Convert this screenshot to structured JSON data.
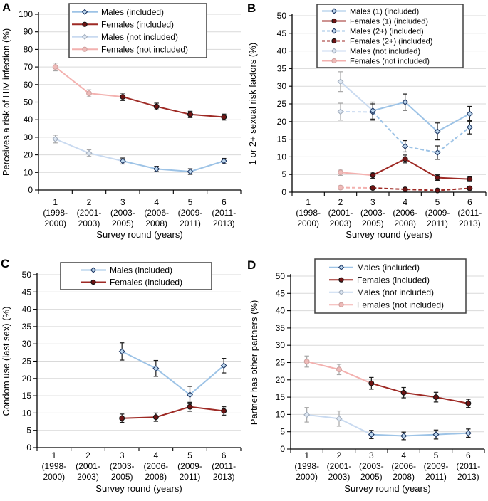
{
  "figure": {
    "background": "#FFFFFF",
    "xlabel": "Survey round (years)",
    "categories": [
      [
        "1",
        "(1998-",
        "2000)"
      ],
      [
        "2",
        "(2001-",
        "2003)"
      ],
      [
        "3",
        "(2003-",
        "2005)"
      ],
      [
        "4",
        "(2006-",
        "2008)"
      ],
      [
        "5",
        "(2009-",
        "2011)"
      ],
      [
        "6",
        "(2011-",
        "2013)"
      ]
    ],
    "colors": {
      "grid": "#D9D9D9",
      "axis": "#000000",
      "legend_border": "#404040",
      "text": "#000000"
    }
  },
  "styles": {
    "male_inc": {
      "line": "#9DC3E6",
      "marker": "diamond",
      "fill": "#BDD7EE",
      "stroke": "#1F3864",
      "err": "#1A1A1A"
    },
    "female_inc": {
      "line": "#9E2A25",
      "marker": "circle",
      "fill": "#6E1414",
      "stroke": "#141414",
      "err": "#1A1A1A"
    },
    "male_not": {
      "line": "#C9DAF0",
      "marker": "diamond",
      "fill": "#DDE7F3",
      "stroke": "#A3AEBD",
      "err": "#A6A6A6"
    },
    "female_not": {
      "line": "#F3B1AF",
      "marker": "circle",
      "fill": "#EFBAB8",
      "stroke": "#CFA2A0",
      "err": "#A6A6A6"
    }
  },
  "chart_data": [
    {
      "type": "line",
      "panel": "A",
      "ylabel": "Perceives a risk of HIV infection (%)",
      "xlabel": "Survey round (years)",
      "ylim": [
        0,
        100
      ],
      "ystep": 10,
      "yticks": [
        "0",
        "10",
        "20",
        "30",
        "40",
        "50",
        "60",
        "70",
        "80",
        "90",
        "100"
      ],
      "grid": true,
      "legend_position": "top",
      "legend": [
        {
          "label": "Males (included)",
          "style": "male_inc",
          "dash": false
        },
        {
          "label": "Females (included)",
          "style": "female_inc",
          "dash": false
        },
        {
          "label": "Males (not included)",
          "style": "male_not",
          "dash": false
        },
        {
          "label": "Females (not included)",
          "style": "female_not",
          "dash": false
        }
      ],
      "series": [
        {
          "name": "females-not-included",
          "style": "female_not",
          "dash": false,
          "extend": {
            "x": 3,
            "y": 53
          },
          "points": [
            {
              "x": 1,
              "y": 70,
              "e": 2.2
            },
            {
              "x": 2,
              "y": 55,
              "e": 2.0
            }
          ]
        },
        {
          "name": "males-not-included",
          "style": "male_not",
          "dash": false,
          "extend": {
            "x": 3,
            "y": 16.5
          },
          "points": [
            {
              "x": 1,
              "y": 29,
              "e": 2.2
            },
            {
              "x": 2,
              "y": 21,
              "e": 1.9
            }
          ]
        },
        {
          "name": "females-included",
          "style": "female_inc",
          "dash": false,
          "points": [
            {
              "x": 3,
              "y": 53,
              "e": 2.1
            },
            {
              "x": 4,
              "y": 47.5,
              "e": 1.9
            },
            {
              "x": 5,
              "y": 43,
              "e": 1.8
            },
            {
              "x": 6,
              "y": 41.5,
              "e": 1.7
            }
          ]
        },
        {
          "name": "males-included",
          "style": "male_inc",
          "dash": false,
          "points": [
            {
              "x": 3,
              "y": 16.5,
              "e": 1.7
            },
            {
              "x": 4,
              "y": 12,
              "e": 1.5
            },
            {
              "x": 5,
              "y": 10.5,
              "e": 1.6
            },
            {
              "x": 6,
              "y": 16.5,
              "e": 1.5
            }
          ]
        }
      ]
    },
    {
      "type": "line",
      "panel": "B",
      "ylabel": "1 or 2+ sexual risk factors (%)",
      "xlabel": "Survey round (years)",
      "ylim": [
        0,
        50
      ],
      "ystep": 5,
      "yticks": [
        "0",
        "5",
        "10",
        "15",
        "20",
        "25",
        "30",
        "35",
        "40",
        "45",
        "50"
      ],
      "grid": true,
      "legend_position": "top",
      "legend": [
        {
          "label": "Males (1) (included)",
          "style": "male_inc",
          "dash": false
        },
        {
          "label": "Females (1) (included)",
          "style": "female_inc",
          "dash": false
        },
        {
          "label": "Males (2+) (included)",
          "style": "male_inc",
          "dash": true
        },
        {
          "label": "Females (2+) (included)",
          "style": "female_inc",
          "dash": true
        },
        {
          "label": "Males (not included)",
          "style": "male_not",
          "dash": false
        },
        {
          "label": "Females (not included)",
          "style": "female_not",
          "dash": false
        }
      ],
      "series": [
        {
          "name": "males-not-included-1",
          "style": "male_not",
          "dash": false,
          "extend": {
            "x": 3,
            "y": 23.1
          },
          "points": [
            {
              "x": 2,
              "y": 31.3,
              "e": 2.8
            }
          ]
        },
        {
          "name": "males-not-included-2plus",
          "style": "male_not",
          "dash": true,
          "extend": {
            "x": 3,
            "y": 22.7
          },
          "points": [
            {
              "x": 2,
              "y": 22.8,
              "e": 2.4
            }
          ]
        },
        {
          "name": "females-not-included-1",
          "style": "female_not",
          "dash": false,
          "extend": {
            "x": 3,
            "y": 4.8
          },
          "points": [
            {
              "x": 2,
              "y": 5.6,
              "e": 0.9
            }
          ]
        },
        {
          "name": "females-not-included-2plus",
          "style": "female_not",
          "dash": true,
          "extend": {
            "x": 3,
            "y": 1.2
          },
          "points": [
            {
              "x": 2,
              "y": 1.3,
              "e": 0.5
            }
          ]
        },
        {
          "name": "males-2plus-included",
          "style": "male_inc",
          "dash": true,
          "points": [
            {
              "x": 3,
              "y": 22.7,
              "e": 2.3
            },
            {
              "x": 4,
              "y": 13,
              "e": 1.6
            },
            {
              "x": 5,
              "y": 11.2,
              "e": 1.9
            },
            {
              "x": 6,
              "y": 18.4,
              "e": 1.9
            }
          ]
        },
        {
          "name": "males-1-included",
          "style": "male_inc",
          "dash": false,
          "points": [
            {
              "x": 3,
              "y": 23.1,
              "e": 2.4
            },
            {
              "x": 4,
              "y": 25.5,
              "e": 2.3
            },
            {
              "x": 5,
              "y": 17.2,
              "e": 2.4
            },
            {
              "x": 6,
              "y": 22.2,
              "e": 2.1
            }
          ]
        },
        {
          "name": "females-2plus-included",
          "style": "female_inc",
          "dash": true,
          "points": [
            {
              "x": 3,
              "y": 1.2,
              "e": 0.4
            },
            {
              "x": 4,
              "y": 0.8,
              "e": 0.3
            },
            {
              "x": 5,
              "y": 0.5,
              "e": 0.3
            },
            {
              "x": 6,
              "y": 1.1,
              "e": 0.4
            }
          ]
        },
        {
          "name": "females-1-included",
          "style": "female_inc",
          "dash": false,
          "points": [
            {
              "x": 3,
              "y": 4.8,
              "e": 0.9
            },
            {
              "x": 4,
              "y": 9.4,
              "e": 1.1
            },
            {
              "x": 5,
              "y": 4.1,
              "e": 0.8
            },
            {
              "x": 6,
              "y": 3.7,
              "e": 0.7
            }
          ]
        }
      ]
    },
    {
      "type": "line",
      "panel": "C",
      "ylabel": "Condom use (last sex) (%)",
      "xlabel": "Survey round (years)",
      "ylim": [
        0,
        50
      ],
      "ystep": 5,
      "yticks": [
        "0",
        "5",
        "10",
        "15",
        "20",
        "25",
        "30",
        "35",
        "40",
        "45",
        "50"
      ],
      "grid": true,
      "legend_position": "top",
      "legend": [
        {
          "label": "Males (included)",
          "style": "male_inc",
          "dash": false
        },
        {
          "label": "Females (included)",
          "style": "female_inc",
          "dash": false
        }
      ],
      "series": [
        {
          "name": "males-included",
          "style": "male_inc",
          "dash": false,
          "points": [
            {
              "x": 3,
              "y": 27.8,
              "e": 2.5
            },
            {
              "x": 4,
              "y": 22.9,
              "e": 2.3
            },
            {
              "x": 5,
              "y": 15.3,
              "e": 2.4
            },
            {
              "x": 6,
              "y": 23.7,
              "e": 2.1
            }
          ]
        },
        {
          "name": "females-included",
          "style": "female_inc",
          "dash": false,
          "points": [
            {
              "x": 3,
              "y": 8.5,
              "e": 1.2
            },
            {
              "x": 4,
              "y": 8.8,
              "e": 1.2
            },
            {
              "x": 5,
              "y": 11.8,
              "e": 1.3
            },
            {
              "x": 6,
              "y": 10.6,
              "e": 1.2
            }
          ]
        }
      ]
    },
    {
      "type": "line",
      "panel": "D",
      "ylabel": "Partner has other partners (%)",
      "xlabel": "Survey round (years)",
      "ylim": [
        0,
        50
      ],
      "ystep": 5,
      "yticks": [
        "0",
        "5",
        "10",
        "15",
        "20",
        "25",
        "30",
        "35",
        "40",
        "45",
        "50"
      ],
      "grid": true,
      "legend_position": "top",
      "legend": [
        {
          "label": "Males (included)",
          "style": "male_inc",
          "dash": false
        },
        {
          "label": "Females (included)",
          "style": "female_inc",
          "dash": false
        },
        {
          "label": "Males (not included)",
          "style": "male_not",
          "dash": false
        },
        {
          "label": "Females (not included)",
          "style": "female_not",
          "dash": false
        }
      ],
      "series": [
        {
          "name": "females-not-included",
          "style": "female_not",
          "dash": false,
          "extend": {
            "x": 3,
            "y": 19
          },
          "points": [
            {
              "x": 1,
              "y": 25.3,
              "e": 1.6
            },
            {
              "x": 2,
              "y": 23,
              "e": 1.5
            }
          ]
        },
        {
          "name": "males-not-included",
          "style": "male_not",
          "dash": false,
          "extend": {
            "x": 3,
            "y": 4.2
          },
          "points": [
            {
              "x": 1,
              "y": 9.9,
              "e": 2.1
            },
            {
              "x": 2,
              "y": 8.8,
              "e": 2.2
            }
          ]
        },
        {
          "name": "females-included",
          "style": "female_inc",
          "dash": false,
          "points": [
            {
              "x": 3,
              "y": 19,
              "e": 1.7
            },
            {
              "x": 4,
              "y": 16.3,
              "e": 1.5
            },
            {
              "x": 5,
              "y": 15,
              "e": 1.4
            },
            {
              "x": 6,
              "y": 13.2,
              "e": 1.2
            }
          ]
        },
        {
          "name": "males-included",
          "style": "male_inc",
          "dash": false,
          "points": [
            {
              "x": 3,
              "y": 4.2,
              "e": 1.2
            },
            {
              "x": 4,
              "y": 3.8,
              "e": 1.1
            },
            {
              "x": 5,
              "y": 4.2,
              "e": 1.3
            },
            {
              "x": 6,
              "y": 4.6,
              "e": 1.2
            }
          ]
        }
      ]
    }
  ]
}
